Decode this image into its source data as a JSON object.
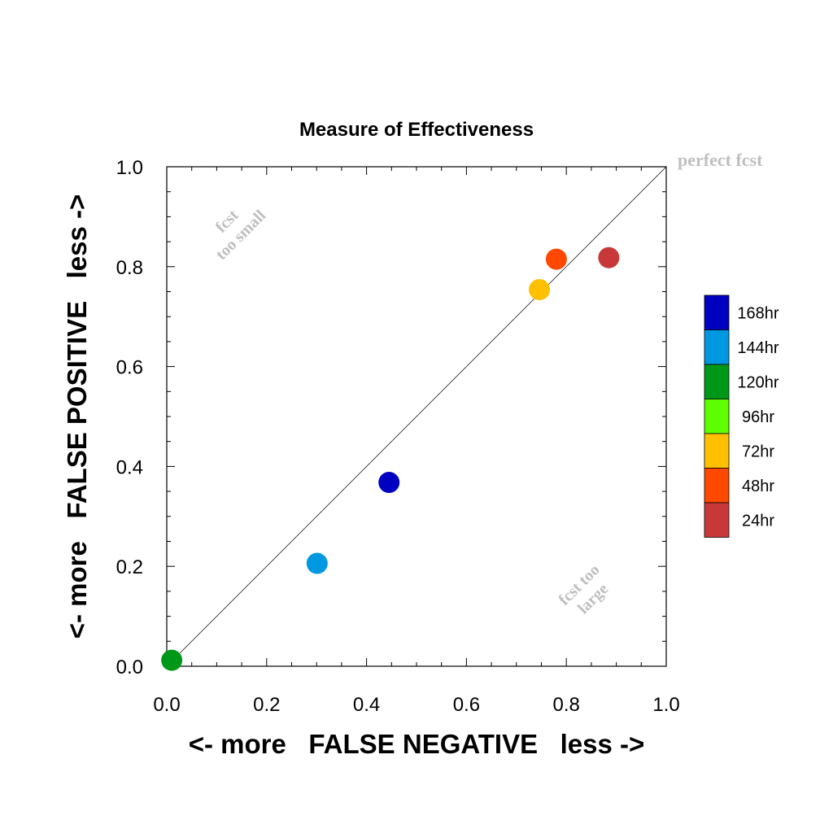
{
  "chart_data": {
    "type": "scatter",
    "title": "Measure of Effectiveness",
    "xlabel": "<- more   FALSE NEGATIVE   less ->",
    "ylabel": "<- more   FALSE POSITIVE   less ->",
    "xlim": [
      0,
      1
    ],
    "ylim": [
      0,
      1
    ],
    "x_ticks": [
      "0.0",
      "0.2",
      "0.4",
      "0.6",
      "0.8",
      "1.0"
    ],
    "y_ticks": [
      "0.0",
      "0.2",
      "0.4",
      "0.6",
      "0.8",
      "1.0"
    ],
    "grid": false,
    "reference_line": {
      "from": [
        0,
        0
      ],
      "to": [
        1,
        1
      ]
    },
    "annotations": {
      "perfect": "perfect fcst",
      "too_small_line1": "fcst",
      "too_small_line2": "too small",
      "too_large_line1": "fcst too",
      "too_large_line2": "large"
    },
    "legend": {
      "placement": "right",
      "entries": [
        {
          "label": "168hr",
          "color": "#0000c0"
        },
        {
          "label": "144hr",
          "color": "#0098e0"
        },
        {
          "label": "120hr",
          "color": "#009818"
        },
        {
          "label": "96hr",
          "color": "#60ff00"
        },
        {
          "label": "72hr",
          "color": "#ffc000"
        },
        {
          "label": "48hr",
          "color": "#ff4800"
        },
        {
          "label": "24hr",
          "color": "#c83838"
        }
      ]
    },
    "points": [
      {
        "series": "24hr",
        "x": 0.885,
        "y": 0.818
      },
      {
        "series": "48hr",
        "x": 0.78,
        "y": 0.815
      },
      {
        "series": "72hr",
        "x": 0.746,
        "y": 0.754
      },
      {
        "series": "120hr",
        "x": 0.01,
        "y": 0.012
      },
      {
        "series": "144hr",
        "x": 0.301,
        "y": 0.206
      },
      {
        "series": "168hr",
        "x": 0.445,
        "y": 0.368
      }
    ]
  }
}
